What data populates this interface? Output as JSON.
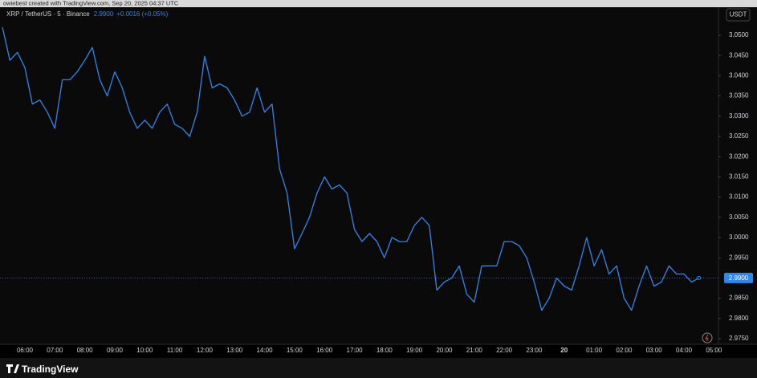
{
  "attribution": "owiebest created with TradingView.com, Sep 20, 2025 04:37 UTC",
  "brand": "TradingView",
  "chart_data": {
    "type": "line",
    "title": "XRP / TetherUS · 5 · Binance",
    "change": "+0.0016 (+0.05%)",
    "currency": "USDT",
    "last_price": {
      "value": 2.99,
      "label": "2.9900"
    },
    "categories": [
      null,
      null,
      null,
      "06:00",
      null,
      null,
      null,
      "07:00",
      null,
      null,
      null,
      "08:00",
      null,
      null,
      null,
      "09:00",
      null,
      null,
      null,
      "10:00",
      null,
      null,
      null,
      "11:00",
      null,
      null,
      null,
      "12:00",
      null,
      null,
      null,
      "13:00",
      null,
      null,
      null,
      "14:00",
      null,
      null,
      null,
      "15:00",
      null,
      null,
      null,
      "16:00",
      null,
      null,
      null,
      "17:00",
      null,
      null,
      null,
      "18:00",
      null,
      null,
      null,
      "19:00",
      null,
      null,
      null,
      "20:00",
      null,
      null,
      null,
      "21:00",
      null,
      null,
      null,
      "22:00",
      null,
      null,
      null,
      "23:00",
      null,
      null,
      null,
      "20",
      null,
      null,
      null,
      "01:00",
      null,
      null,
      null,
      "02:00",
      null,
      null,
      null,
      "03:00",
      null,
      null,
      null,
      "04:00",
      null,
      null,
      null,
      "05:00"
    ],
    "series": [
      {
        "name": "XRP / TetherUS",
        "color": "#2f86eb",
        "values": [
          3.052,
          3.0438,
          3.0458,
          3.042,
          3.033,
          3.034,
          3.031,
          3.027,
          3.039,
          3.039,
          3.041,
          3.0438,
          3.047,
          3.039,
          3.035,
          3.041,
          3.037,
          3.031,
          3.027,
          3.029,
          3.027,
          3.031,
          3.033,
          3.028,
          3.027,
          3.025,
          3.031,
          3.0448,
          3.037,
          3.038,
          3.037,
          3.034,
          3.03,
          3.031,
          3.037,
          3.031,
          3.033,
          3.017,
          3.011,
          2.9972,
          3.001,
          3.005,
          3.011,
          3.015,
          3.012,
          3.013,
          3.011,
          3.002,
          2.999,
          3.001,
          2.999,
          2.995,
          3.0,
          2.999,
          2.999,
          3.003,
          3.005,
          3.003,
          2.987,
          2.989,
          2.99,
          2.993,
          2.986,
          2.984,
          2.993,
          2.993,
          2.993,
          2.999,
          2.999,
          2.998,
          2.995,
          2.989,
          2.982,
          2.985,
          2.99,
          2.988,
          2.987,
          2.993,
          3.0,
          2.993,
          2.997,
          2.991,
          2.993,
          2.985,
          2.982,
          2.988,
          2.993,
          2.988,
          2.989,
          2.993,
          2.991,
          2.991,
          2.989,
          2.99,
          null,
          null
        ]
      }
    ],
    "ylim": [
      2.975,
      3.05
    ],
    "yticks": [
      {
        "value": 3.05,
        "label": "3.0500"
      },
      {
        "value": 3.045,
        "label": "3.0450"
      },
      {
        "value": 3.04,
        "label": "3.0400"
      },
      {
        "value": 3.035,
        "label": "3.0350"
      },
      {
        "value": 3.03,
        "label": "3.0300"
      },
      {
        "value": 3.025,
        "label": "3.0250"
      },
      {
        "value": 3.02,
        "label": "3.0200"
      },
      {
        "value": 3.015,
        "label": "3.0150"
      },
      {
        "value": 3.01,
        "label": "3.0100"
      },
      {
        "value": 3.005,
        "label": "3.0050"
      },
      {
        "value": 3.0,
        "label": "3.0000"
      },
      {
        "value": 2.995,
        "label": "2.9950"
      },
      {
        "value": 2.985,
        "label": "2.9850"
      },
      {
        "value": 2.98,
        "label": "2.9800"
      },
      {
        "value": 2.975,
        "label": "2.9750"
      }
    ],
    "grid": false
  }
}
